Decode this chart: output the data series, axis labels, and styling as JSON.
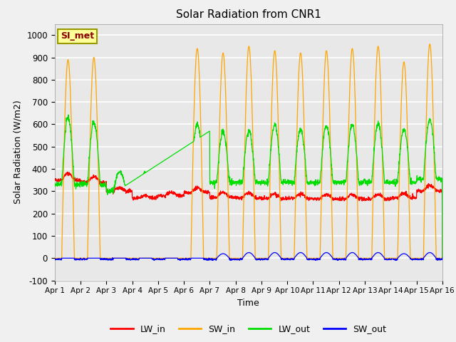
{
  "title": "Solar Radiation from CNR1",
  "xlabel": "Time",
  "ylabel": "Solar Radiation (W/m2)",
  "ylim": [
    -100,
    1050
  ],
  "xlim": [
    0,
    15
  ],
  "xtick_labels": [
    "Apr 1",
    "Apr 2",
    "Apr 3",
    "Apr 4",
    "Apr 5",
    "Apr 6",
    "Apr 7",
    "Apr 8",
    "Apr 9",
    "Apr 10",
    "Apr 11",
    "Apr 12",
    "Apr 13",
    "Apr 14",
    "Apr 15",
    "Apr 16"
  ],
  "ytick_values": [
    -100,
    0,
    100,
    200,
    300,
    400,
    500,
    600,
    700,
    800,
    900,
    1000
  ],
  "colors": {
    "LW_in": "#ff0000",
    "SW_in": "#ffa500",
    "LW_out": "#00dd00",
    "SW_out": "#0000ff"
  },
  "legend_label": "SI_met",
  "legend_box_color": "#ffff99",
  "legend_box_border": "#999900",
  "bg_color": "#e8e8e8",
  "grid_color": "#ffffff",
  "fig_bg": "#f0f0f0"
}
